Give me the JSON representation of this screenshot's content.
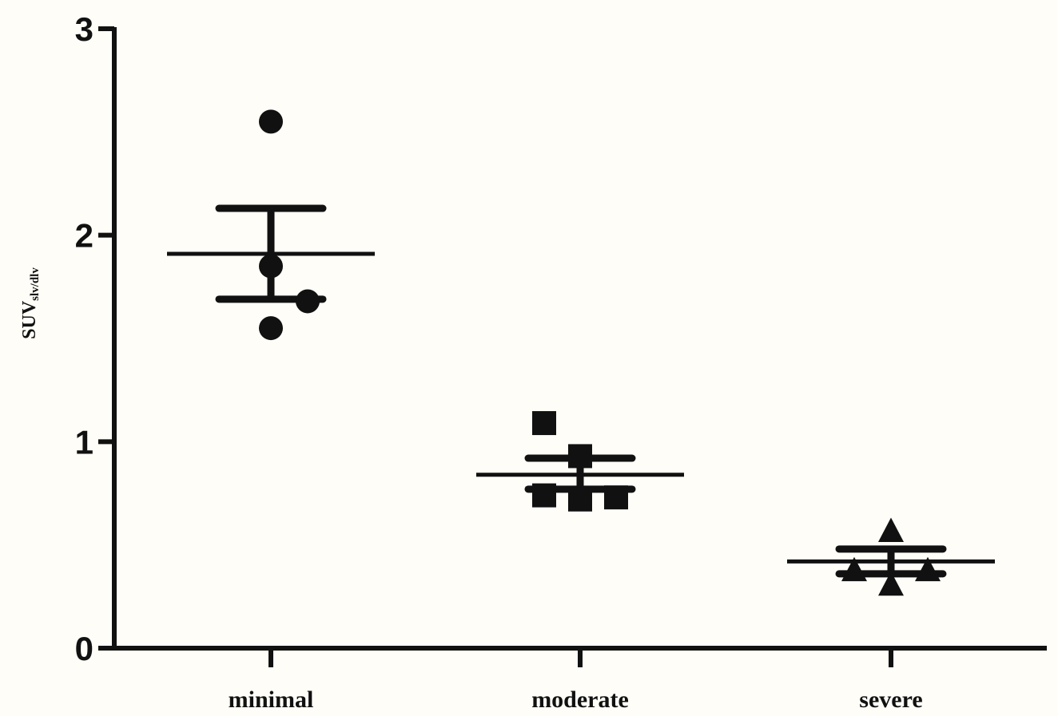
{
  "chart_data": {
    "type": "scatter",
    "title": "",
    "xlabel": "",
    "ylabel": "SUV",
    "ylabel_subscript": "slv/dlv",
    "ylim": [
      0,
      3
    ],
    "yticks": [
      "0",
      "1",
      "2",
      "3"
    ],
    "categories": [
      "minimal",
      "moderate",
      "severe"
    ],
    "grid": false,
    "legend": "none",
    "colors": {
      "marks": "#111111",
      "axis": "#111111",
      "background": "#fefdf8"
    },
    "groups": [
      {
        "category": "minimal",
        "marker": "circle",
        "points": [
          2.55,
          1.85,
          1.68,
          1.55
        ],
        "mean": 1.91,
        "sem_upper": 2.13,
        "sem_lower": 1.69
      },
      {
        "category": "moderate",
        "marker": "square",
        "points": [
          1.09,
          0.93,
          0.74,
          0.72,
          0.73
        ],
        "mean": 0.84,
        "sem_upper": 0.92,
        "sem_lower": 0.77
      },
      {
        "category": "severe",
        "marker": "triangle",
        "points": [
          0.57,
          0.38,
          0.38,
          0.31
        ],
        "mean": 0.42,
        "sem_upper": 0.48,
        "sem_lower": 0.36
      }
    ]
  }
}
